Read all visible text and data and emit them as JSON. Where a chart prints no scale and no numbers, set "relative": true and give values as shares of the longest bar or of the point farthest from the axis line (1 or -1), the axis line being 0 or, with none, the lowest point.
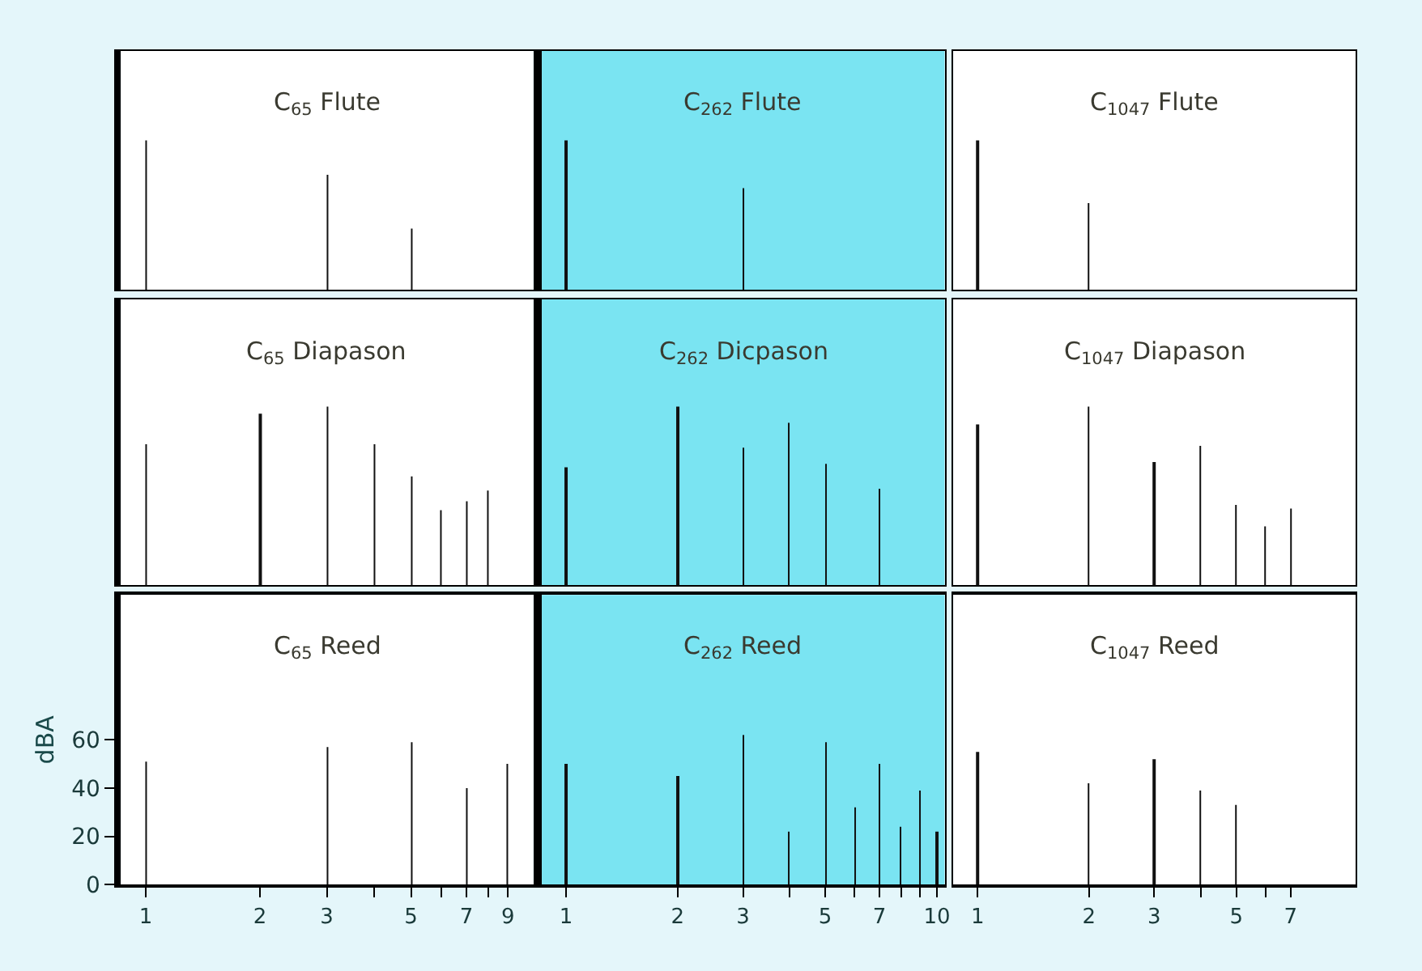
{
  "chart_data": [
    {
      "type": "bar",
      "title": "C$_{65}$ Flute",
      "x": [
        1,
        3,
        5
      ],
      "values": [
        1,
        0.77,
        0.41
      ],
      "color": "#111111",
      "relative": true,
      "log": "x",
      "xlim": [
        0.86,
        10.5
      ],
      "tick_labels": false
    },
    {
      "type": "bar",
      "title": "C$_{262}$ Flute",
      "x": [
        1,
        3
      ],
      "values": [
        1,
        0.68
      ],
      "color": "#111111",
      "relative": true,
      "log": "x",
      "xlim": [
        0.86,
        10.5
      ],
      "tick_labels": false,
      "bands": [
        {
          "axis": "x",
          "from": 0.86,
          "to": 10.5,
          "color": "#7ae4f2"
        }
      ]
    },
    {
      "type": "bar",
      "title": "C$_{1047}$ Flute",
      "x": [
        1,
        2
      ],
      "values": [
        1,
        0.58
      ],
      "color": "#111111",
      "relative": true,
      "log": "x",
      "xlim": [
        0.86,
        10.5
      ],
      "tick_labels": false
    },
    {
      "type": "bar",
      "title": "C$_{65}$ Diapason",
      "x": [
        1,
        2,
        3,
        4,
        5,
        6,
        7,
        8
      ],
      "values": [
        0.79,
        0.96,
        1,
        0.79,
        0.61,
        0.42,
        0.47,
        0.53
      ],
      "color": "#111111",
      "relative": true,
      "log": "x",
      "xlim": [
        0.86,
        10.5
      ],
      "tick_labels": false
    },
    {
      "type": "bar",
      "title": "C$_{262}$ Dicpason",
      "x": [
        1,
        2,
        3,
        4,
        5,
        7
      ],
      "values": [
        0.66,
        1,
        0.77,
        0.91,
        0.68,
        0.54
      ],
      "color": "#111111",
      "relative": true,
      "log": "x",
      "xlim": [
        0.86,
        10.5
      ],
      "tick_labels": false,
      "bands": [
        {
          "axis": "x",
          "from": 0.86,
          "to": 10.5,
          "color": "#7ae4f2"
        }
      ]
    },
    {
      "type": "bar",
      "title": "C$_{1047}$ Diapason",
      "x": [
        1,
        2,
        3,
        4,
        5,
        6,
        7
      ],
      "values": [
        0.9,
        1,
        0.69,
        0.78,
        0.45,
        0.33,
        0.43
      ],
      "color": "#111111",
      "relative": true,
      "log": "x",
      "xlim": [
        0.86,
        10.5
      ],
      "tick_labels": false
    },
    {
      "type": "bar",
      "title": "C$_{65}$ Reed",
      "ylabel": "dBA",
      "x": [
        1,
        3,
        5,
        7,
        9
      ],
      "values": [
        51,
        57,
        59,
        40,
        50
      ],
      "color": "#111111",
      "log": "x",
      "xlim": [
        0.86,
        10.5
      ],
      "ylim": [
        0,
        120
      ],
      "xticks": [
        1,
        2,
        3,
        {
          "value": 4,
          "label": null
        },
        5,
        {
          "value": 6,
          "label": null
        },
        7,
        {
          "value": 8,
          "label": null
        },
        9
      ],
      "yticks": [
        0,
        20,
        40,
        60
      ]
    },
    {
      "type": "bar",
      "title": "C$_{262}$ Reed",
      "x": [
        1,
        2,
        3,
        4,
        5,
        6,
        7,
        8,
        9,
        10
      ],
      "values": [
        50,
        45,
        62,
        22,
        59,
        32,
        50,
        24,
        39,
        22
      ],
      "color": "#111111",
      "log": "x",
      "xlim": [
        0.86,
        10.5
      ],
      "ylim": [
        0,
        120
      ],
      "xticks": [
        1,
        2,
        3,
        {
          "value": 4,
          "label": null
        },
        5,
        {
          "value": 6,
          "label": null
        },
        7,
        {
          "value": 8,
          "label": null
        },
        {
          "value": 9,
          "label": null
        },
        10
      ],
      "tick_labels": "x",
      "bands": [
        {
          "axis": "x",
          "from": 0.86,
          "to": 10.5,
          "color": "#7ae4f2"
        }
      ]
    },
    {
      "type": "bar",
      "title": "C$_{1047}$ Reed",
      "x": [
        1,
        2,
        3,
        4,
        5
      ],
      "values": [
        55,
        42,
        52,
        39,
        33
      ],
      "color": "#111111",
      "log": "x",
      "xlim": [
        0.86,
        10.5
      ],
      "ylim": [
        0,
        120
      ],
      "xticks": [
        1,
        2,
        3,
        {
          "value": 4,
          "label": null
        },
        5,
        {
          "value": 6,
          "label": null
        },
        7
      ],
      "tick_labels": "x"
    }
  ]
}
